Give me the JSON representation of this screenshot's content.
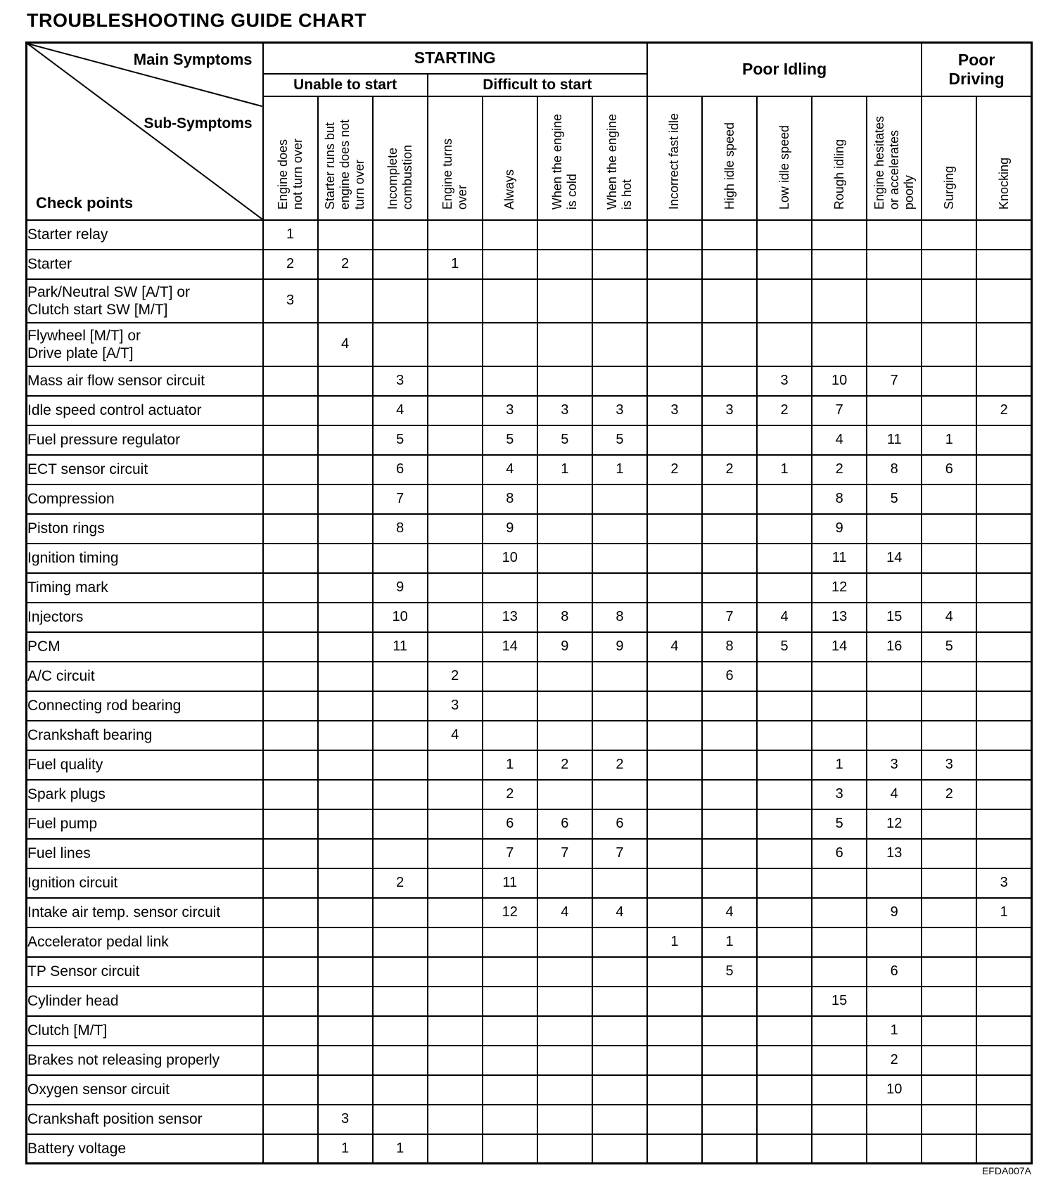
{
  "title": "TROUBLESHOOTING GUIDE CHART",
  "figure_code": "EFDA007A",
  "table": {
    "corner": {
      "main_symptoms": "Main Symptoms",
      "sub_symptoms": "Sub-Symptoms",
      "check_points": "Check points"
    },
    "groups": [
      {
        "label": "STARTING",
        "span": 7
      },
      {
        "label": "Poor Idling",
        "span": 5
      },
      {
        "label": "Poor\nDriving",
        "span": 2
      }
    ],
    "subgroups": [
      {
        "label": "Unable to start",
        "span": 3
      },
      {
        "label": "Difficult to start",
        "span": 4
      }
    ],
    "columns": [
      {
        "id": "engine-does-not-turn-over",
        "label": "Engine does\nnot turn over"
      },
      {
        "id": "starter-runs-but-engine-does-not-turn-over",
        "label": "Starter runs but\nengine does not\nturn over"
      },
      {
        "id": "incomplete-combustion",
        "label": "Incomplete\ncombustion"
      },
      {
        "id": "engine-turns-over",
        "label": "Engine turns\nover"
      },
      {
        "id": "always",
        "label": "Always"
      },
      {
        "id": "when-the-engine-is-cold",
        "label": "When the engine\nis cold"
      },
      {
        "id": "when-the-engine-is-hot",
        "label": "When the engine\nis hot"
      },
      {
        "id": "incorrect-fast-idle",
        "label": "Incorrect  fast idle"
      },
      {
        "id": "high-idle-speed",
        "label": "High idle speed"
      },
      {
        "id": "low-idle-speed",
        "label": "Low idle speed"
      },
      {
        "id": "rough-idling",
        "label": "Rough idling"
      },
      {
        "id": "engine-hesitates-or-accelerates-poorly",
        "label": "Engine hesitates\nor accelerates\npoorly"
      },
      {
        "id": "surging",
        "label": "Surging"
      },
      {
        "id": "knocking",
        "label": "Knocking"
      }
    ],
    "rows": [
      {
        "label": "Starter relay",
        "values": [
          "1",
          "",
          "",
          "",
          "",
          "",
          "",
          "",
          "",
          "",
          "",
          "",
          "",
          ""
        ]
      },
      {
        "label": "Starter",
        "values": [
          "2",
          "2",
          "",
          "1",
          "",
          "",
          "",
          "",
          "",
          "",
          "",
          "",
          "",
          ""
        ]
      },
      {
        "label": "Park/Neutral SW [A/T] or\nClutch start SW [M/T]",
        "tall": true,
        "values": [
          "3",
          "",
          "",
          "",
          "",
          "",
          "",
          "",
          "",
          "",
          "",
          "",
          "",
          ""
        ]
      },
      {
        "label": "Flywheel [M/T] or\nDrive plate [A/T]",
        "tall": true,
        "values": [
          "",
          "4",
          "",
          "",
          "",
          "",
          "",
          "",
          "",
          "",
          "",
          "",
          "",
          ""
        ]
      },
      {
        "label": "Mass air flow sensor circuit",
        "values": [
          "",
          "",
          "3",
          "",
          "",
          "",
          "",
          "",
          "",
          "3",
          "10",
          "7",
          "",
          ""
        ]
      },
      {
        "label": "Idle speed control actuator",
        "values": [
          "",
          "",
          "4",
          "",
          "3",
          "3",
          "3",
          "3",
          "3",
          "2",
          "7",
          "",
          "",
          "2"
        ]
      },
      {
        "label": "Fuel pressure regulator",
        "values": [
          "",
          "",
          "5",
          "",
          "5",
          "5",
          "5",
          "",
          "",
          "",
          "4",
          "11",
          "1",
          ""
        ]
      },
      {
        "label": "ECT sensor circuit",
        "values": [
          "",
          "",
          "6",
          "",
          "4",
          "1",
          "1",
          "2",
          "2",
          "1",
          "2",
          "8",
          "6",
          ""
        ]
      },
      {
        "label": "Compression",
        "values": [
          "",
          "",
          "7",
          "",
          "8",
          "",
          "",
          "",
          "",
          "",
          "8",
          "5",
          "",
          ""
        ]
      },
      {
        "label": "Piston rings",
        "values": [
          "",
          "",
          "8",
          "",
          "9",
          "",
          "",
          "",
          "",
          "",
          "9",
          "",
          "",
          ""
        ]
      },
      {
        "label": "Ignition timing",
        "values": [
          "",
          "",
          "",
          "",
          "10",
          "",
          "",
          "",
          "",
          "",
          "11",
          "14",
          "",
          ""
        ]
      },
      {
        "label": "Timing mark",
        "values": [
          "",
          "",
          "9",
          "",
          "",
          "",
          "",
          "",
          "",
          "",
          "12",
          "",
          "",
          ""
        ]
      },
      {
        "label": "Injectors",
        "values": [
          "",
          "",
          "10",
          "",
          "13",
          "8",
          "8",
          "",
          "7",
          "4",
          "13",
          "15",
          "4",
          ""
        ]
      },
      {
        "label": "PCM",
        "values": [
          "",
          "",
          "11",
          "",
          "14",
          "9",
          "9",
          "4",
          "8",
          "5",
          "14",
          "16",
          "5",
          ""
        ]
      },
      {
        "label": "A/C circuit",
        "values": [
          "",
          "",
          "",
          "2",
          "",
          "",
          "",
          "",
          "6",
          "",
          "",
          "",
          "",
          ""
        ]
      },
      {
        "label": "Connecting rod bearing",
        "values": [
          "",
          "",
          "",
          "3",
          "",
          "",
          "",
          "",
          "",
          "",
          "",
          "",
          "",
          ""
        ]
      },
      {
        "label": "Crankshaft bearing",
        "values": [
          "",
          "",
          "",
          "4",
          "",
          "",
          "",
          "",
          "",
          "",
          "",
          "",
          "",
          ""
        ]
      },
      {
        "label": "Fuel quality",
        "values": [
          "",
          "",
          "",
          "",
          "1",
          "2",
          "2",
          "",
          "",
          "",
          "1",
          "3",
          "3",
          ""
        ]
      },
      {
        "label": "Spark plugs",
        "values": [
          "",
          "",
          "",
          "",
          "2",
          "",
          "",
          "",
          "",
          "",
          "3",
          "4",
          "2",
          ""
        ]
      },
      {
        "label": "Fuel pump",
        "values": [
          "",
          "",
          "",
          "",
          "6",
          "6",
          "6",
          "",
          "",
          "",
          "5",
          "12",
          "",
          ""
        ]
      },
      {
        "label": "Fuel lines",
        "values": [
          "",
          "",
          "",
          "",
          "7",
          "7",
          "7",
          "",
          "",
          "",
          "6",
          "13",
          "",
          ""
        ]
      },
      {
        "label": "Ignition circuit",
        "values": [
          "",
          "",
          "2",
          "",
          "11",
          "",
          "",
          "",
          "",
          "",
          "",
          "",
          "",
          "3"
        ]
      },
      {
        "label": "Intake air temp. sensor circuit",
        "values": [
          "",
          "",
          "",
          "",
          "12",
          "4",
          "4",
          "",
          "4",
          "",
          "",
          "9",
          "",
          "1"
        ]
      },
      {
        "label": "Accelerator pedal link",
        "values": [
          "",
          "",
          "",
          "",
          "",
          "",
          "",
          "1",
          "1",
          "",
          "",
          "",
          "",
          ""
        ]
      },
      {
        "label": "TP Sensor circuit",
        "values": [
          "",
          "",
          "",
          "",
          "",
          "",
          "",
          "",
          "5",
          "",
          "",
          "6",
          "",
          ""
        ]
      },
      {
        "label": "Cylinder head",
        "values": [
          "",
          "",
          "",
          "",
          "",
          "",
          "",
          "",
          "",
          "",
          "15",
          "",
          "",
          ""
        ]
      },
      {
        "label": "Clutch [M/T]",
        "values": [
          "",
          "",
          "",
          "",
          "",
          "",
          "",
          "",
          "",
          "",
          "",
          "1",
          "",
          ""
        ]
      },
      {
        "label": "Brakes not releasing properly",
        "values": [
          "",
          "",
          "",
          "",
          "",
          "",
          "",
          "",
          "",
          "",
          "",
          "2",
          "",
          ""
        ]
      },
      {
        "label": "Oxygen sensor circuit",
        "values": [
          "",
          "",
          "",
          "",
          "",
          "",
          "",
          "",
          "",
          "",
          "",
          "10",
          "",
          ""
        ]
      },
      {
        "label": "Crankshaft position sensor",
        "values": [
          "",
          "3",
          "",
          "",
          "",
          "",
          "",
          "",
          "",
          "",
          "",
          "",
          "",
          ""
        ]
      },
      {
        "label": "Battery voltage",
        "values": [
          "",
          "1",
          "1",
          "",
          "",
          "",
          "",
          "",
          "",
          "",
          "",
          "",
          "",
          ""
        ]
      }
    ]
  }
}
